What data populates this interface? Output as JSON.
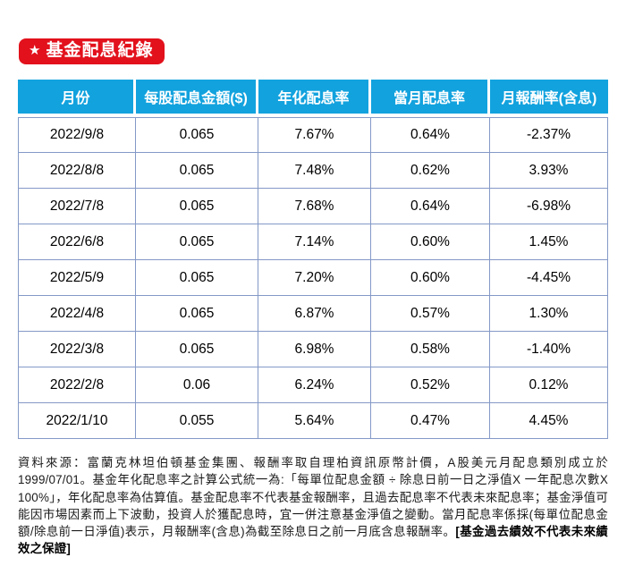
{
  "page": {
    "badge": {
      "star_icon": "★",
      "label": "基金配息紀錄"
    }
  },
  "colors": {
    "badge_bg": "#e2111c",
    "header_bg": "#12a2de",
    "table_border": "#8499c7",
    "header_text": "#ffffff"
  },
  "chart_data": {
    "type": "table",
    "title": "基金配息紀錄",
    "columns": [
      "月份",
      "每股配息金額($)",
      "年化配息率",
      "當月配息率",
      "月報酬率(含息)"
    ],
    "rows": [
      [
        "2022/9/8",
        "0.065",
        "7.67%",
        "0.64%",
        "-2.37%"
      ],
      [
        "2022/8/8",
        "0.065",
        "7.48%",
        "0.62%",
        "3.93%"
      ],
      [
        "2022/7/8",
        "0.065",
        "7.68%",
        "0.64%",
        "-6.98%"
      ],
      [
        "2022/6/8",
        "0.065",
        "7.14%",
        "0.60%",
        "1.45%"
      ],
      [
        "2022/5/9",
        "0.065",
        "7.20%",
        "0.60%",
        "-4.45%"
      ],
      [
        "2022/4/8",
        "0.065",
        "6.87%",
        "0.57%",
        "1.30%"
      ],
      [
        "2022/3/8",
        "0.065",
        "6.98%",
        "0.58%",
        "-1.40%"
      ],
      [
        "2022/2/8",
        "0.06",
        "6.24%",
        "0.52%",
        "0.12%"
      ],
      [
        "2022/1/10",
        "0.055",
        "5.64%",
        "0.47%",
        "4.45%"
      ]
    ]
  },
  "footnote": {
    "text": "資料來源：富蘭克林坦伯頓基金集團、報酬率取自理柏資訊原幣計價，A股美元月配息類別成立於1999/07/01。基金年化配息率之計算公式統一為:「每單位配息金額 ÷ 除息日前一日之淨值X 一年配息次數X 100%」，年化配息率為估算值。基金配息率不代表基金報酬率，且過去配息率不代表未來配息率；基金淨值可能因市場因素而上下波動，投資人於獲配息時，宜一併注意基金淨值之變動。當月配息率係採(每單位配息金額/除息前一日淨值)表示，月報酬率(含息)為截至除息日之前一月底含息報酬率。",
    "emphasis": "[基金過去績效不代表未來績效之保證]"
  }
}
